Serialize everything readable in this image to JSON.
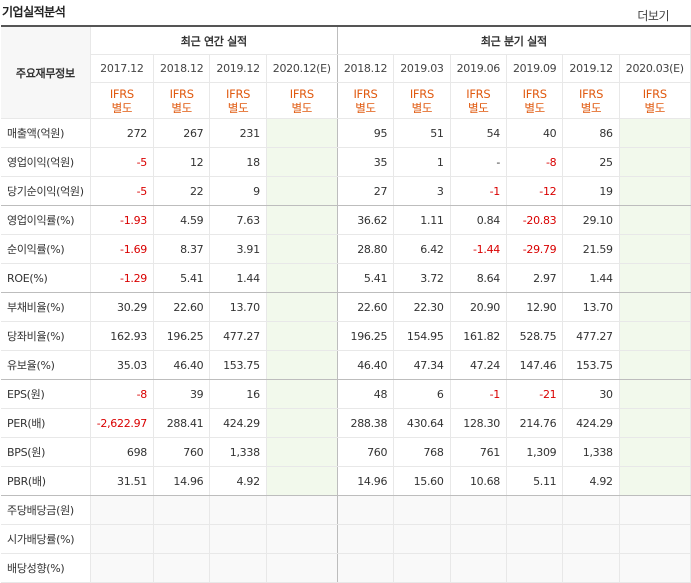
{
  "title": "기업실적분석",
  "more_label": "더보기",
  "header": {
    "row_label": "주요재무정보",
    "annual_group": "최근 연간 실적",
    "quarter_group": "최근 분기 실적"
  },
  "annual_periods": [
    "2017.12",
    "2018.12",
    "2019.12",
    "2020.12(E)"
  ],
  "quarter_periods": [
    "2018.12",
    "2019.03",
    "2019.06",
    "2019.09",
    "2019.12",
    "2020.03(E)"
  ],
  "ifrs_label": "IFRS",
  "basis_label": "별도",
  "rows": [
    {
      "label": "매출액(억원)",
      "annual": [
        "272",
        "267",
        "231",
        ""
      ],
      "quarter": [
        "95",
        "51",
        "54",
        "40",
        "86",
        ""
      ]
    },
    {
      "label": "영업이익(억원)",
      "annual": [
        "-5",
        "12",
        "18",
        ""
      ],
      "quarter": [
        "35",
        "1",
        "-",
        "-8",
        "25",
        ""
      ]
    },
    {
      "label": "당기순이익(억원)",
      "annual": [
        "-5",
        "22",
        "9",
        ""
      ],
      "quarter": [
        "27",
        "3",
        "-1",
        "-12",
        "19",
        ""
      ]
    },
    {
      "label": "영업이익률(%)",
      "annual": [
        "-1.93",
        "4.59",
        "7.63",
        ""
      ],
      "quarter": [
        "36.62",
        "1.11",
        "0.84",
        "-20.83",
        "29.10",
        ""
      ]
    },
    {
      "label": "순이익률(%)",
      "annual": [
        "-1.69",
        "8.37",
        "3.91",
        ""
      ],
      "quarter": [
        "28.80",
        "6.42",
        "-1.44",
        "-29.79",
        "21.59",
        ""
      ]
    },
    {
      "label": "ROE(%)",
      "annual": [
        "-1.29",
        "5.41",
        "1.44",
        ""
      ],
      "quarter": [
        "5.41",
        "3.72",
        "8.64",
        "2.97",
        "1.44",
        ""
      ]
    },
    {
      "label": "부채비율(%)",
      "annual": [
        "30.29",
        "22.60",
        "13.70",
        ""
      ],
      "quarter": [
        "22.60",
        "22.30",
        "20.90",
        "12.90",
        "13.70",
        ""
      ]
    },
    {
      "label": "당좌비율(%)",
      "annual": [
        "162.93",
        "196.25",
        "477.27",
        ""
      ],
      "quarter": [
        "196.25",
        "154.95",
        "161.82",
        "528.75",
        "477.27",
        ""
      ]
    },
    {
      "label": "유보율(%)",
      "annual": [
        "35.03",
        "46.40",
        "153.75",
        ""
      ],
      "quarter": [
        "46.40",
        "47.34",
        "47.24",
        "147.46",
        "153.75",
        ""
      ]
    },
    {
      "label": "EPS(원)",
      "annual": [
        "-8",
        "39",
        "16",
        ""
      ],
      "quarter": [
        "48",
        "6",
        "-1",
        "-21",
        "30",
        ""
      ]
    },
    {
      "label": "PER(배)",
      "annual": [
        "-2,622.97",
        "288.41",
        "424.29",
        ""
      ],
      "quarter": [
        "288.38",
        "430.64",
        "128.30",
        "214.76",
        "424.29",
        ""
      ]
    },
    {
      "label": "BPS(원)",
      "annual": [
        "698",
        "760",
        "1,338",
        ""
      ],
      "quarter": [
        "760",
        "768",
        "761",
        "1,309",
        "1,338",
        ""
      ]
    },
    {
      "label": "PBR(배)",
      "annual": [
        "31.51",
        "14.96",
        "4.92",
        ""
      ],
      "quarter": [
        "14.96",
        "15.60",
        "10.68",
        "5.11",
        "4.92",
        ""
      ]
    },
    {
      "label": "주당배당금(원)",
      "annual": [
        "",
        "",
        "",
        ""
      ],
      "quarter": [
        "",
        "",
        "",
        "",
        "",
        ""
      ]
    },
    {
      "label": "시가배당률(%)",
      "annual": [
        "",
        "",
        "",
        ""
      ],
      "quarter": [
        "",
        "",
        "",
        "",
        "",
        ""
      ]
    },
    {
      "label": "배당성향(%)",
      "annual": [
        "",
        "",
        "",
        ""
      ],
      "quarter": [
        "",
        "",
        "",
        "",
        "",
        ""
      ]
    }
  ],
  "colors": {
    "negative": "#d90000",
    "ifrs": "#e05a10",
    "estimate_bg": "#f2f9ec"
  }
}
